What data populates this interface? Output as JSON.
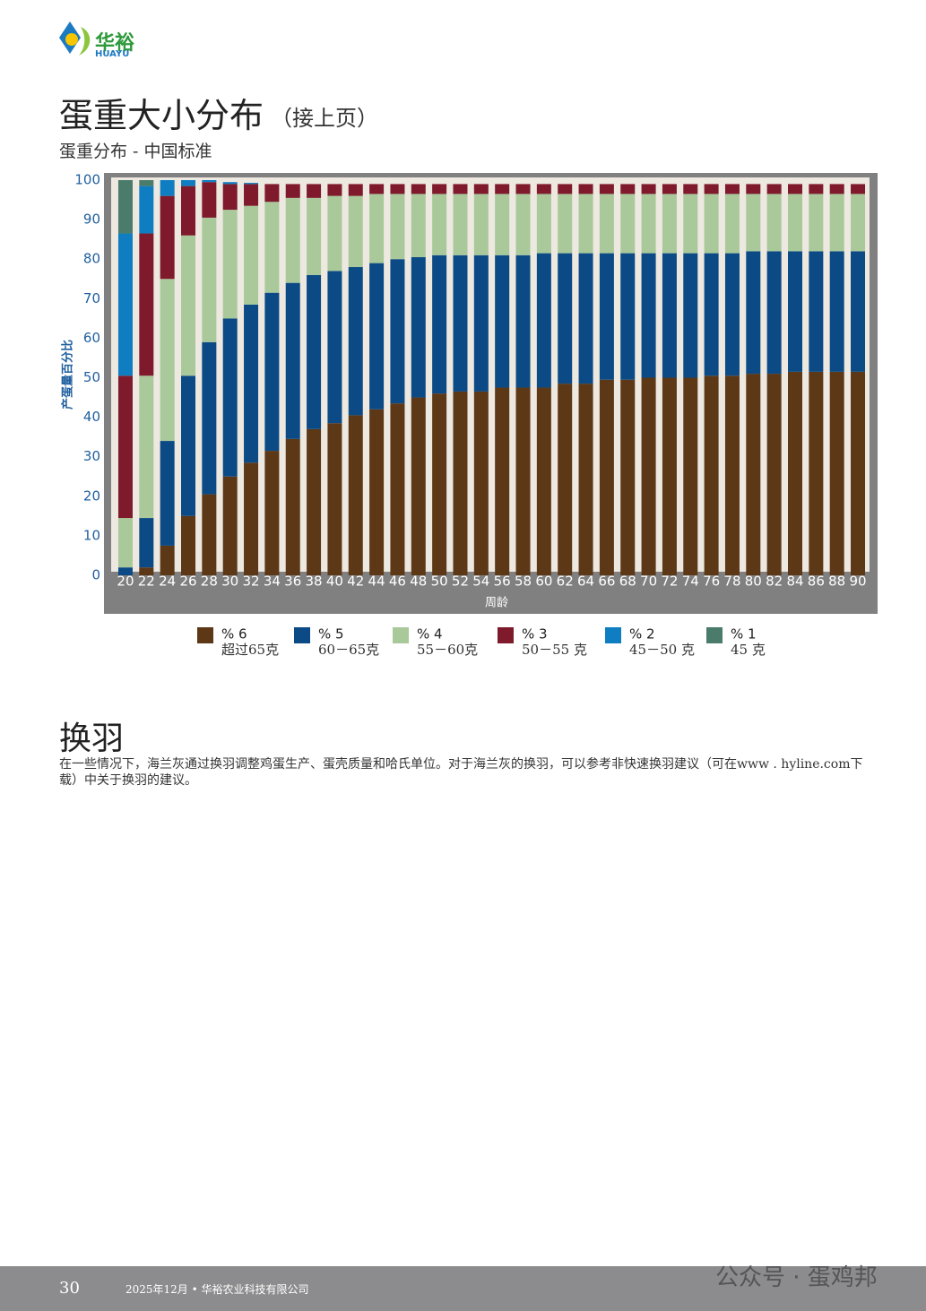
{
  "header": {
    "logo_cn": "华裕",
    "logo_en": "HUAYU"
  },
  "page_title": "蛋重大小分布",
  "page_title_note": "（接上页）",
  "chart_data": {
    "type": "stacked-bar",
    "title": "蛋重分布 - 中国标准",
    "y_label": "产蛋量百分比",
    "x_label": "周龄",
    "categories": [
      "20",
      "22",
      "24",
      "26",
      "28",
      "30",
      "32",
      "34",
      "36",
      "38",
      "40",
      "42",
      "44",
      "46",
      "48",
      "50",
      "52",
      "54",
      "56",
      "58",
      "60",
      "62",
      "64",
      "66",
      "68",
      "70",
      "72",
      "74",
      "76",
      "78",
      "80",
      "82",
      "84",
      "86",
      "88",
      "90"
    ],
    "ylim": [
      0,
      100
    ],
    "yticks": [
      0,
      10,
      20,
      30,
      40,
      50,
      60,
      70,
      80,
      90,
      100
    ],
    "series": [
      {
        "name": "% 6",
        "description": "超过65克",
        "color": "#5c3817",
        "values": [
          0,
          2,
          7.5,
          15,
          20.5,
          25,
          28.5,
          31.5,
          34.5,
          37,
          38.5,
          40.5,
          42,
          43.5,
          45,
          46,
          46.5,
          46.5,
          47.5,
          47.5,
          47.5,
          48.5,
          48.5,
          49.5,
          49.5,
          50,
          50,
          50,
          50.5,
          50.5,
          51,
          51,
          51.5,
          51.5,
          51.5,
          51.5
        ]
      },
      {
        "name": "% 5",
        "description": "60－65克",
        "color": "#0b4a85",
        "values": [
          2,
          12.5,
          26.5,
          35.5,
          38.5,
          40,
          40,
          40,
          39.5,
          39,
          38.5,
          37.5,
          37,
          36.5,
          35.5,
          35,
          34.5,
          34.5,
          33.5,
          33.5,
          34,
          33,
          33,
          32,
          32,
          31.5,
          31.5,
          31.5,
          31,
          31,
          31,
          31,
          30.5,
          30.5,
          30.5,
          30.5
        ]
      },
      {
        "name": "% 4",
        "description": "55－60克",
        "color": "#a9c99b",
        "values": [
          12.5,
          36,
          41,
          35.5,
          31.5,
          27.5,
          25,
          23,
          21.5,
          19.5,
          19,
          18,
          17.5,
          16.5,
          16,
          15.5,
          15.5,
          15.5,
          15.5,
          15.5,
          15,
          15,
          15,
          15,
          15,
          15,
          15,
          15,
          15,
          15,
          14.5,
          14.5,
          14.5,
          14.5,
          14.5,
          14.5
        ]
      },
      {
        "name": "% 3",
        "description": "50－55 克",
        "color": "#7e1a2b",
        "values": [
          36,
          36,
          21,
          12.5,
          9,
          6.5,
          5.5,
          4.5,
          3.5,
          3.5,
          3,
          3,
          2.5,
          2.5,
          2.5,
          2.5,
          2.5,
          2.5,
          2.5,
          2.5,
          2.5,
          2.5,
          2.5,
          2.5,
          2.5,
          2.5,
          2.5,
          2.5,
          2.5,
          2.5,
          2.5,
          2.5,
          2.5,
          2.5,
          2.5,
          2.5
        ]
      },
      {
        "name": "% 2",
        "description": "45－50 克",
        "color": "#0f7dc2",
        "values": [
          36,
          12,
          4,
          1.5,
          0.5,
          0.5,
          0.3,
          0,
          0,
          0,
          0,
          0,
          0,
          0,
          0,
          0,
          0,
          0,
          0,
          0,
          0,
          0,
          0,
          0,
          0,
          0,
          0,
          0,
          0,
          0,
          0,
          0,
          0,
          0,
          0,
          0
        ]
      },
      {
        "name": "% 1",
        "description": "45 克",
        "color": "#4b7c6b",
        "values": [
          13.5,
          1.5,
          0,
          0,
          0,
          0,
          0,
          0,
          0,
          0,
          0,
          0,
          0,
          0,
          0,
          0,
          0,
          0,
          0,
          0,
          0,
          0,
          0,
          0,
          0,
          0,
          0,
          0,
          0,
          0,
          0,
          0,
          0,
          0,
          0,
          0
        ]
      }
    ]
  },
  "section": {
    "title": "换羽",
    "text": "在一些情况下，海兰灰通过换羽调整鸡蛋生产、蛋壳质量和哈氏单位。对于海兰灰的换羽，可以参考非快速换羽建议（可在www . hyline.com下载）中关于换羽的建议。"
  },
  "footer": {
    "page": "30",
    "text": "2025年12月 • 华裕农业科技有限公司",
    "watermark": "公众号 · 蛋鸡邦"
  }
}
